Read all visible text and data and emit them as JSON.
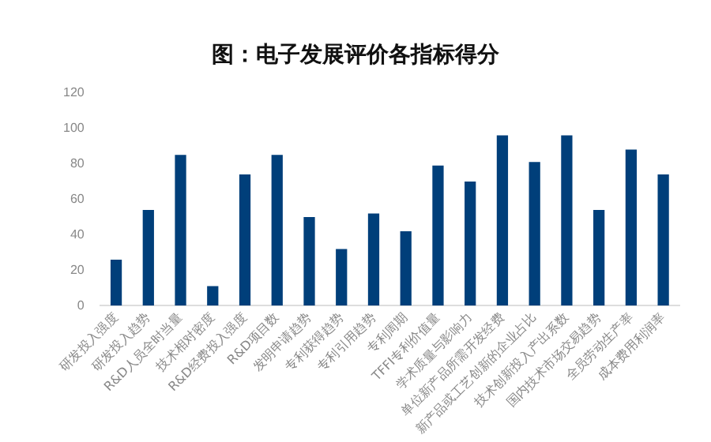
{
  "chart_data": {
    "type": "bar",
    "title": "图：电子发展评价各指标得分",
    "categories": [
      "研发投入强度",
      "研发投入趋势",
      "R&D人员全时当量",
      "技术相对密度",
      "R&D经费投入强度",
      "R&D项目数",
      "发明申请趋势",
      "专利获得趋势",
      "专利引用趋势",
      "专利周期",
      "TFFI专利价值量",
      "学术质量与影响力",
      "单位新产品所需开发经费",
      "新产品或工艺创新的企业占比",
      "技术创新投入产出系数",
      "国内技术市场交易趋势",
      "全员劳动生产率",
      "成本费用利润率"
    ],
    "values": [
      26,
      54,
      85,
      11,
      74,
      85,
      50,
      32,
      52,
      42,
      79,
      70,
      96,
      81,
      96,
      54,
      88,
      74
    ],
    "color": "#003f7a",
    "ylim": [
      0,
      120
    ],
    "yticks": [
      0,
      20,
      40,
      60,
      80,
      100,
      120
    ],
    "grid": false,
    "legend": false
  }
}
